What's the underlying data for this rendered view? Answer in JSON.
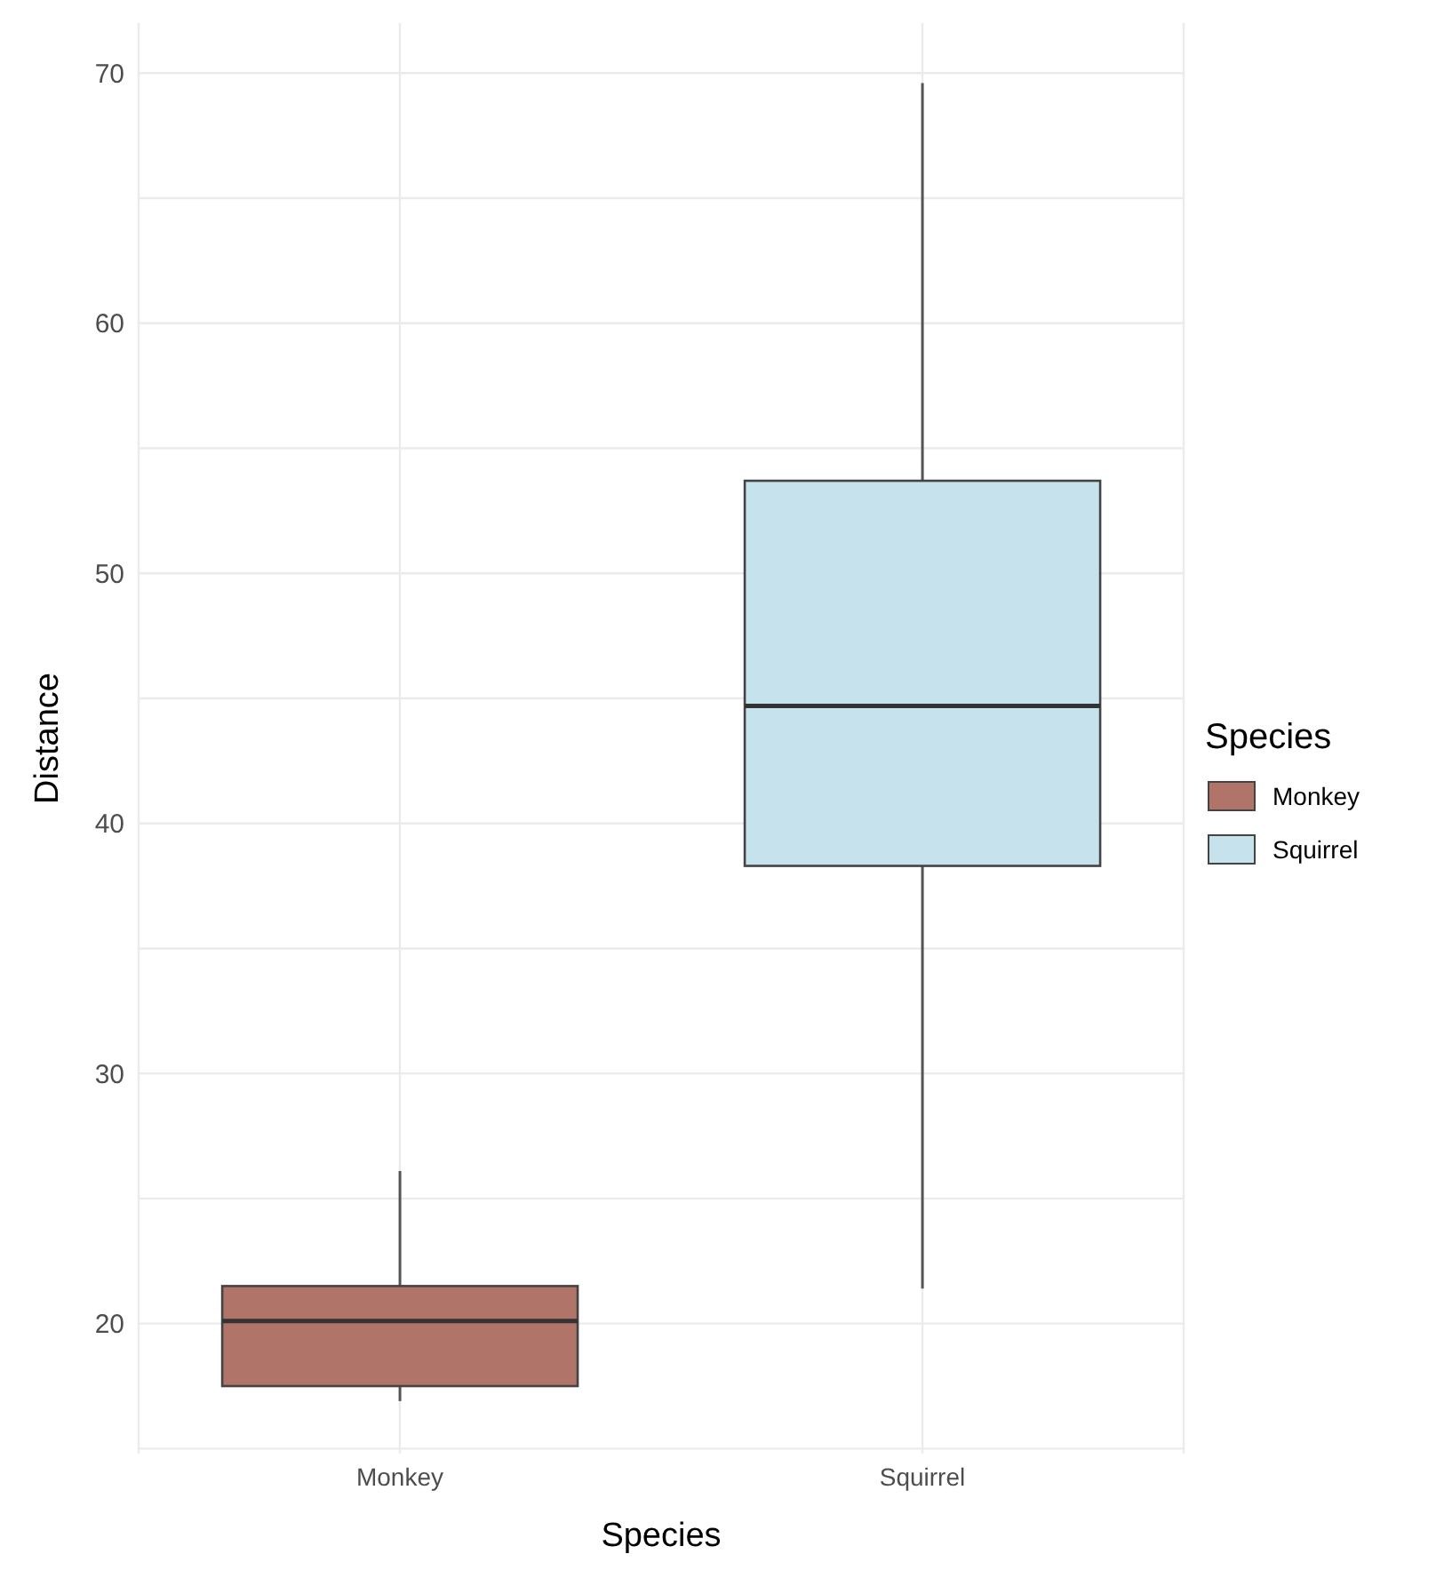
{
  "chart_data": {
    "type": "box",
    "xlabel": "Species",
    "ylabel": "Distance",
    "legend_title": "Species",
    "legend": "right",
    "grid": true,
    "categories": [
      "Monkey",
      "Squirrel"
    ],
    "series": [
      {
        "name": "Monkey",
        "color": "#b07468",
        "boxes": [
          {
            "low": 16.9,
            "q1": 17.5,
            "median": 20.1,
            "q3": 21.5,
            "high": 26.1
          },
          null
        ]
      },
      {
        "name": "Squirrel",
        "color": "#c6e2ec",
        "boxes": [
          null,
          {
            "low": 21.4,
            "q1": 38.3,
            "median": 44.7,
            "q3": 53.7,
            "high": 69.6
          }
        ]
      }
    ],
    "ylim": [
      14.8,
      72
    ],
    "yticks": [
      20,
      30,
      40,
      50,
      60,
      70
    ]
  }
}
